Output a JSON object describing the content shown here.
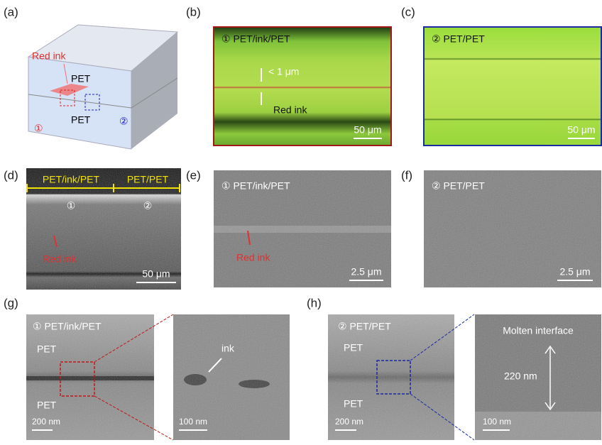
{
  "panels": {
    "a": {
      "label": "(a)",
      "ink": "Red ink",
      "top": "PET",
      "bottom": "PET",
      "m1": "①",
      "m2": "②"
    },
    "b": {
      "label": "(b)",
      "title": "① PET/ink/PET",
      "gap": "< 1 μm",
      "ink": "Red ink",
      "scale": "50 μm"
    },
    "c": {
      "label": "(c)",
      "title": "② PET/PET",
      "scale": "50 μm"
    },
    "d": {
      "label": "(d)",
      "left": "PET/ink/PET",
      "right": "PET/PET",
      "m1": "①",
      "m2": "②",
      "ink": "Red ink",
      "scale": "50 μm"
    },
    "e": {
      "label": "(e)",
      "title": "① PET/ink/PET",
      "ink": "Red ink",
      "scale": "2.5 μm"
    },
    "f": {
      "label": "(f)",
      "title": "② PET/PET",
      "scale": "2.5 μm"
    },
    "g": {
      "label": "(g)",
      "title": "① PET/ink/PET",
      "top": "PET",
      "bottom": "PET",
      "scale": "200 nm",
      "zoom_text": "ink",
      "zoom_scale": "100 nm"
    },
    "h": {
      "label": "(h)",
      "title": "② PET/PET",
      "top": "PET",
      "bottom": "PET",
      "scale": "200 nm",
      "zoom_title": "Molten interface",
      "zoom_text": "220 nm",
      "zoom_scale": "100 nm"
    }
  }
}
